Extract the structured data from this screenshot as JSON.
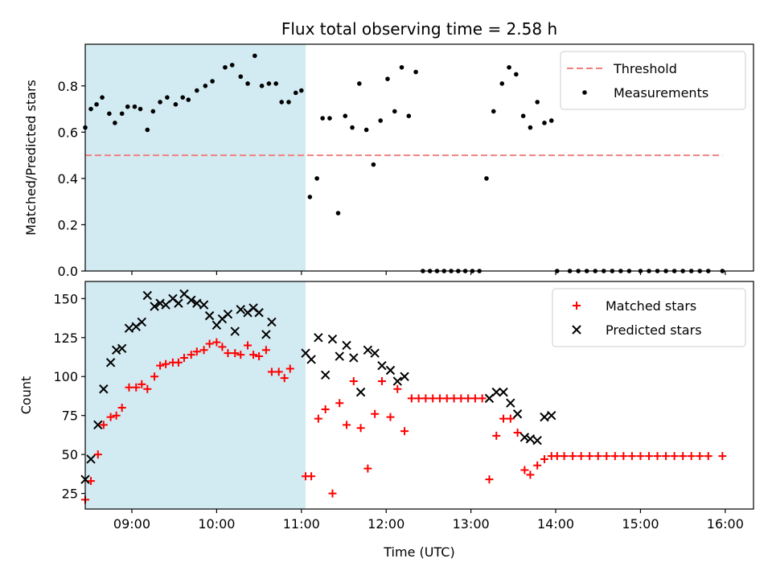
{
  "chart_data": {
    "title": "Flux total observing time = 2.58 h",
    "xlabel": "Time (UTC)",
    "xlim": [
      "08:27",
      "16:20"
    ],
    "xticks": [
      "09:00",
      "10:00",
      "11:00",
      "12:00",
      "13:00",
      "14:00",
      "15:00",
      "16:00"
    ],
    "shaded_interval": [
      "08:27",
      "11:03"
    ],
    "colors": {
      "shade": "#add8e6",
      "threshold": "#f08080",
      "matched": "#ff0000",
      "predicted": "#000000",
      "measurements": "#000000"
    },
    "panels": [
      {
        "type": "scatter",
        "ylabel": "Matched/Predicted stars",
        "ylim": [
          0,
          0.98
        ],
        "yticks": [
          "0.0",
          "0.2",
          "0.4",
          "0.6",
          "0.8"
        ],
        "legend_position": "top-right",
        "threshold": {
          "name": "Threshold",
          "y": 0.5,
          "x_range": [
            "08:27",
            "15:58"
          ]
        },
        "series": [
          {
            "name": "Measurements",
            "points": [
              [
                "08:27",
                0.62
              ],
              [
                "08:31",
                0.7
              ],
              [
                "08:35",
                0.72
              ],
              [
                "08:39",
                0.75
              ],
              [
                "08:44",
                0.68
              ],
              [
                "08:48",
                0.64
              ],
              [
                "08:53",
                0.68
              ],
              [
                "08:57",
                0.71
              ],
              [
                "09:02",
                0.71
              ],
              [
                "09:06",
                0.7
              ],
              [
                "09:11",
                0.61
              ],
              [
                "09:15",
                0.69
              ],
              [
                "09:20",
                0.73
              ],
              [
                "09:25",
                0.75
              ],
              [
                "09:31",
                0.72
              ],
              [
                "09:36",
                0.75
              ],
              [
                "09:40",
                0.74
              ],
              [
                "09:46",
                0.78
              ],
              [
                "09:52",
                0.8
              ],
              [
                "09:57",
                0.82
              ],
              [
                "10:06",
                0.88
              ],
              [
                "10:11",
                0.89
              ],
              [
                "10:17",
                0.84
              ],
              [
                "10:22",
                0.81
              ],
              [
                "10:27",
                0.93
              ],
              [
                "10:32",
                0.8
              ],
              [
                "10:37",
                0.81
              ],
              [
                "10:42",
                0.81
              ],
              [
                "10:46",
                0.73
              ],
              [
                "10:51",
                0.73
              ],
              [
                "10:56",
                0.77
              ],
              [
                "11:00",
                0.78
              ],
              [
                "11:06",
                0.32
              ],
              [
                "11:11",
                0.4
              ],
              [
                "11:15",
                0.66
              ],
              [
                "11:20",
                0.66
              ],
              [
                "11:26",
                0.25
              ],
              [
                "11:31",
                0.67
              ],
              [
                "11:36",
                0.62
              ],
              [
                "11:41",
                0.81
              ],
              [
                "11:46",
                0.61
              ],
              [
                "11:51",
                0.46
              ],
              [
                "11:56",
                0.65
              ],
              [
                "12:01",
                0.83
              ],
              [
                "12:06",
                0.69
              ],
              [
                "12:11",
                0.88
              ],
              [
                "12:16",
                0.67
              ],
              [
                "12:21",
                0.86
              ],
              [
                "12:26",
                0.0
              ],
              [
                "12:31",
                0.0
              ],
              [
                "12:36",
                0.0
              ],
              [
                "12:41",
                0.0
              ],
              [
                "12:46",
                0.0
              ],
              [
                "12:51",
                0.0
              ],
              [
                "12:56",
                0.0
              ],
              [
                "13:01",
                0.0
              ],
              [
                "13:06",
                0.0
              ],
              [
                "13:11",
                0.4
              ],
              [
                "13:16",
                0.69
              ],
              [
                "13:22",
                0.81
              ],
              [
                "13:27",
                0.88
              ],
              [
                "13:32",
                0.85
              ],
              [
                "13:37",
                0.67
              ],
              [
                "13:42",
                0.62
              ],
              [
                "13:47",
                0.73
              ],
              [
                "13:52",
                0.64
              ],
              [
                "13:57",
                0.65
              ],
              [
                "14:01",
                0.0
              ],
              [
                "14:10",
                0.0
              ],
              [
                "14:16",
                0.0
              ],
              [
                "14:22",
                0.0
              ],
              [
                "14:28",
                0.0
              ],
              [
                "14:34",
                0.0
              ],
              [
                "14:40",
                0.0
              ],
              [
                "14:46",
                0.0
              ],
              [
                "14:52",
                0.0
              ],
              [
                "15:00",
                0.0
              ],
              [
                "15:06",
                0.0
              ],
              [
                "15:12",
                0.0
              ],
              [
                "15:18",
                0.0
              ],
              [
                "15:24",
                0.0
              ],
              [
                "15:30",
                0.0
              ],
              [
                "15:36",
                0.0
              ],
              [
                "15:42",
                0.0
              ],
              [
                "15:48",
                0.0
              ],
              [
                "15:58",
                0.0
              ]
            ]
          }
        ]
      },
      {
        "type": "scatter",
        "ylabel": "Count",
        "ylim": [
          15,
          161
        ],
        "yticks": [
          "25",
          "50",
          "75",
          "100",
          "125",
          "150"
        ],
        "legend_position": "top-right",
        "series": [
          {
            "name": "Matched stars",
            "marker": "plus",
            "points": [
              [
                "08:27",
                21
              ],
              [
                "08:31",
                33
              ],
              [
                "08:36",
                50
              ],
              [
                "08:40",
                69
              ],
              [
                "08:45",
                74
              ],
              [
                "08:49",
                75
              ],
              [
                "08:53",
                80
              ],
              [
                "08:58",
                93
              ],
              [
                "09:03",
                93
              ],
              [
                "09:07",
                95
              ],
              [
                "09:11",
                92
              ],
              [
                "09:16",
                100
              ],
              [
                "09:20",
                107
              ],
              [
                "09:24",
                108
              ],
              [
                "09:29",
                109
              ],
              [
                "09:33",
                109
              ],
              [
                "09:37",
                112
              ],
              [
                "09:42",
                114
              ],
              [
                "09:46",
                116
              ],
              [
                "09:51",
                117
              ],
              [
                "09:55",
                121
              ],
              [
                "10:00",
                122
              ],
              [
                "10:04",
                119
              ],
              [
                "10:08",
                115
              ],
              [
                "10:13",
                115
              ],
              [
                "10:17",
                114
              ],
              [
                "10:22",
                120
              ],
              [
                "10:26",
                114
              ],
              [
                "10:30",
                113
              ],
              [
                "10:35",
                117
              ],
              [
                "10:39",
                103
              ],
              [
                "10:44",
                103
              ],
              [
                "10:48",
                99
              ],
              [
                "10:52",
                105
              ],
              [
                "11:03",
                36
              ],
              [
                "11:07",
                36
              ],
              [
                "11:12",
                73
              ],
              [
                "11:17",
                79
              ],
              [
                "11:22",
                25
              ],
              [
                "11:27",
                83
              ],
              [
                "11:32",
                69
              ],
              [
                "11:37",
                97
              ],
              [
                "11:42",
                67
              ],
              [
                "11:47",
                41
              ],
              [
                "11:52",
                76
              ],
              [
                "11:57",
                97
              ],
              [
                "12:03",
                74
              ],
              [
                "12:08",
                92
              ],
              [
                "12:13",
                65
              ],
              [
                "12:18",
                86
              ],
              [
                "12:23",
                86
              ],
              [
                "12:28",
                86
              ],
              [
                "12:33",
                86
              ],
              [
                "12:38",
                86
              ],
              [
                "12:43",
                86
              ],
              [
                "12:48",
                86
              ],
              [
                "12:53",
                86
              ],
              [
                "12:58",
                86
              ],
              [
                "13:03",
                86
              ],
              [
                "13:08",
                86
              ],
              [
                "13:13",
                34
              ],
              [
                "13:18",
                62
              ],
              [
                "13:23",
                73
              ],
              [
                "13:28",
                73
              ],
              [
                "13:33",
                64
              ],
              [
                "13:38",
                40
              ],
              [
                "13:42",
                37
              ],
              [
                "13:47",
                43
              ],
              [
                "13:52",
                47
              ],
              [
                "13:57",
                49
              ],
              [
                "14:01",
                49
              ],
              [
                "14:06",
                49
              ],
              [
                "14:12",
                49
              ],
              [
                "14:18",
                49
              ],
              [
                "14:24",
                49
              ],
              [
                "14:30",
                49
              ],
              [
                "14:36",
                49
              ],
              [
                "14:42",
                49
              ],
              [
                "14:48",
                49
              ],
              [
                "14:54",
                49
              ],
              [
                "15:00",
                49
              ],
              [
                "15:06",
                49
              ],
              [
                "15:12",
                49
              ],
              [
                "15:18",
                49
              ],
              [
                "15:24",
                49
              ],
              [
                "15:30",
                49
              ],
              [
                "15:36",
                49
              ],
              [
                "15:42",
                49
              ],
              [
                "15:48",
                49
              ],
              [
                "15:58",
                49
              ]
            ]
          },
          {
            "name": "Predicted stars",
            "marker": "x",
            "points": [
              [
                "08:27",
                34
              ],
              [
                "08:31",
                47
              ],
              [
                "08:36",
                69
              ],
              [
                "08:40",
                92
              ],
              [
                "08:45",
                109
              ],
              [
                "08:49",
                117
              ],
              [
                "08:53",
                118
              ],
              [
                "08:58",
                131
              ],
              [
                "09:03",
                132
              ],
              [
                "09:07",
                135
              ],
              [
                "09:11",
                152
              ],
              [
                "09:16",
                145
              ],
              [
                "09:20",
                147
              ],
              [
                "09:24",
                146
              ],
              [
                "09:29",
                150
              ],
              [
                "09:33",
                147
              ],
              [
                "09:37",
                153
              ],
              [
                "09:42",
                149
              ],
              [
                "09:46",
                147
              ],
              [
                "09:51",
                146
              ],
              [
                "09:55",
                139
              ],
              [
                "10:00",
                133
              ],
              [
                "10:04",
                137
              ],
              [
                "10:08",
                140
              ],
              [
                "10:13",
                129
              ],
              [
                "10:17",
                143
              ],
              [
                "10:22",
                141
              ],
              [
                "10:26",
                144
              ],
              [
                "10:30",
                141
              ],
              [
                "10:35",
                127
              ],
              [
                "10:39",
                135
              ],
              [
                "11:03",
                115
              ],
              [
                "11:07",
                111
              ],
              [
                "11:12",
                125
              ],
              [
                "11:17",
                101
              ],
              [
                "11:22",
                124
              ],
              [
                "11:27",
                113
              ],
              [
                "11:32",
                120
              ],
              [
                "11:37",
                112
              ],
              [
                "11:42",
                90
              ],
              [
                "11:47",
                117
              ],
              [
                "11:52",
                115
              ],
              [
                "11:57",
                107
              ],
              [
                "12:03",
                104
              ],
              [
                "12:08",
                97
              ],
              [
                "12:13",
                100
              ],
              [
                "13:13",
                86
              ],
              [
                "13:18",
                90
              ],
              [
                "13:23",
                90
              ],
              [
                "13:28",
                83
              ],
              [
                "13:33",
                76
              ],
              [
                "13:38",
                61
              ],
              [
                "13:42",
                60
              ],
              [
                "13:47",
                59
              ],
              [
                "13:52",
                74
              ],
              [
                "13:57",
                75
              ]
            ]
          }
        ]
      }
    ]
  }
}
